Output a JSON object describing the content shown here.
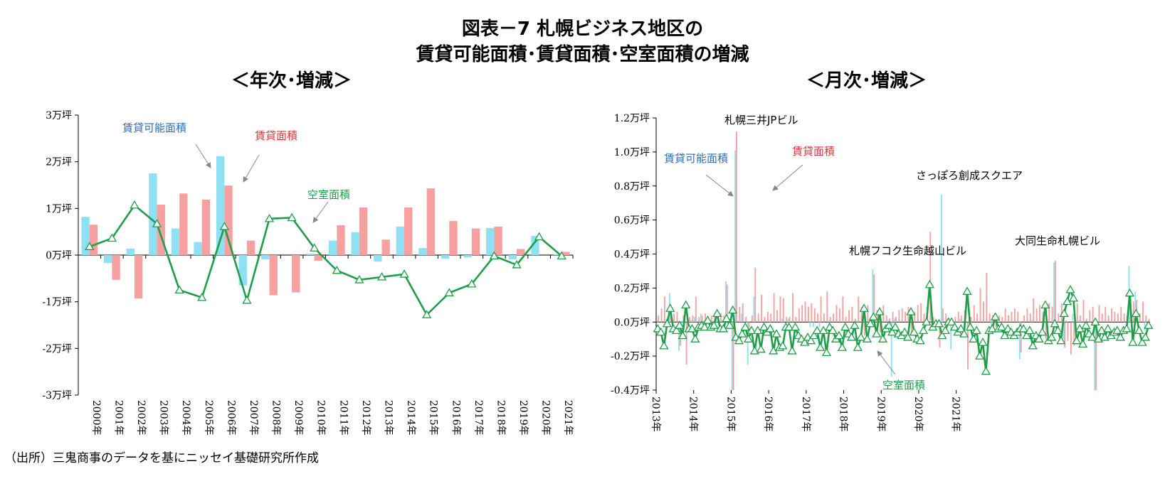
{
  "title_line1": "図表－7 札幌ビジネス地区の",
  "title_line2": "賃貸可能面積･賃貸面積･空室面積の増減",
  "source": "（出所）三鬼商事のデータを基にニッセイ基礎研究所作成",
  "colors": {
    "available": "#8ee0f2",
    "leased": "#f6a0a0",
    "vacant": "#1e9e48",
    "blue_text": "#2e6db4",
    "red_text": "#d9373f",
    "green_text": "#1e9e48"
  },
  "chart_data": [
    {
      "type": "bar",
      "subtitle": "＜年次･増減＞",
      "categories": [
        "2000年",
        "2001年",
        "2002年",
        "2003年",
        "2004年",
        "2005年",
        "2006年",
        "2007年",
        "2008年",
        "2009年",
        "2010年",
        "2011年",
        "2012年",
        "2013年",
        "2014年",
        "2015年",
        "2016年",
        "2017年",
        "2018年",
        "2019年",
        "2020年",
        "2021年"
      ],
      "ylim": [
        -3,
        3
      ],
      "yticks": [
        3,
        2,
        1,
        0,
        -1,
        -2,
        -3
      ],
      "ytick_labels": [
        "3万坪",
        "2万坪",
        "1万坪",
        "0万坪",
        "-1万坪",
        "-2万坪",
        "-3万坪"
      ],
      "series": [
        {
          "name": "賃貸可能面積",
          "kind": "bar",
          "values": [
            0.82,
            -0.17,
            0.14,
            1.75,
            0.57,
            0.28,
            2.12,
            -0.65,
            -0.09,
            0.0,
            0.03,
            0.31,
            0.49,
            -0.14,
            0.61,
            0.15,
            -0.08,
            -0.05,
            0.58,
            -0.09,
            0.41,
            0.02
          ]
        },
        {
          "name": "賃貸面積",
          "kind": "bar",
          "values": [
            0.65,
            -0.53,
            -0.93,
            1.08,
            1.32,
            1.19,
            1.49,
            0.31,
            -0.86,
            -0.8,
            -0.12,
            0.64,
            1.02,
            0.33,
            1.02,
            1.43,
            0.73,
            0.57,
            0.61,
            0.13,
            0.0,
            0.07
          ]
        },
        {
          "name": "空室面積",
          "kind": "line",
          "values": [
            0.18,
            0.36,
            1.07,
            0.67,
            -0.75,
            -0.91,
            0.61,
            -0.97,
            0.78,
            0.8,
            0.15,
            -0.33,
            -0.53,
            -0.47,
            -0.41,
            -1.28,
            -0.81,
            -0.62,
            -0.02,
            -0.21,
            0.39,
            -0.02
          ]
        }
      ],
      "annotations": [
        {
          "text": "賃貸可能面積",
          "target": "2006年 賃貸可能面積"
        },
        {
          "text": "賃貸面積",
          "target": "2006年 賃貸面積"
        },
        {
          "text": "空室面積",
          "target": "2010年 空室面積"
        }
      ]
    },
    {
      "type": "bar",
      "subtitle": "＜月次･増減＞",
      "x_start": "2013-01",
      "x_end": "2021-12",
      "xtick_labels": [
        "2013年",
        "2014年",
        "2015年",
        "2016年",
        "2017年",
        "2018年",
        "2019年",
        "2020年",
        "2021年"
      ],
      "ylim": [
        -0.4,
        1.2
      ],
      "yticks": [
        1.2,
        1.0,
        0.8,
        0.6,
        0.4,
        0.2,
        0.0,
        -0.2,
        -0.4
      ],
      "ytick_labels": [
        "1.2万坪",
        "1.0万坪",
        "0.8万坪",
        "0.6万坪",
        "0.4万坪",
        "0.2万坪",
        "0.0万坪",
        "-0.2万坪",
        "-0.4万坪"
      ],
      "series": [
        {
          "name": "賃貸可能面積",
          "kind": "bar",
          "values": [
            0.01,
            0.0,
            0.0,
            0.02,
            0.17,
            0.0,
            0.0,
            -0.17,
            -0.05,
            0.0,
            0.0,
            0.01,
            0.03,
            0.0,
            0.05,
            0.01,
            0.0,
            0.0,
            0.0,
            0.01,
            0.0,
            0.0,
            0.24,
            0.0,
            -0.4,
            1.01,
            0.0,
            0.05,
            0.0,
            -0.25,
            0.0,
            0.15,
            0.0,
            0.0,
            0.0,
            0.0,
            0.01,
            0.0,
            0.0,
            0.0,
            0.02,
            0.0,
            0.02,
            0.0,
            0.0,
            0.0,
            0.0,
            0.0,
            0.0,
            -0.03,
            -0.03,
            0.0,
            -0.03,
            0.0,
            0.0,
            0.01,
            0.0,
            0.0,
            0.0,
            0.0,
            0.0,
            0.0,
            0.0,
            0.0,
            0.01,
            0.0,
            0.03,
            0.0,
            0.0,
            0.31,
            0.0,
            0.0,
            0.0,
            0.0,
            0.0,
            -0.32,
            0.02,
            0.0,
            0.0,
            0.0,
            0.0,
            0.0,
            0.0,
            0.0,
            0.0,
            0.0,
            0.0,
            0.0,
            0.01,
            0.0,
            0.0,
            0.75,
            0.0,
            0.02,
            -0.16,
            -0.05,
            0.0,
            0.02,
            0.0,
            0.0,
            0.0,
            0.0,
            0.0,
            0.0,
            0.0,
            0.0,
            0.0,
            -0.05,
            0.0,
            0.0,
            0.0,
            0.0,
            0.0,
            0.0,
            0.0,
            0.0,
            -0.22,
            0.0,
            0.0,
            0.0,
            0.01,
            0.0,
            0.0,
            0.0,
            0.0,
            0.0,
            0.0,
            0.35,
            0.0,
            0.0,
            -0.1,
            0.01,
            0.0,
            0.05,
            0.0,
            0.01,
            0.0,
            0.0,
            0.0,
            0.0,
            -0.4,
            0.0,
            0.0,
            0.0,
            0.0,
            0.0,
            0.0,
            0.0,
            0.0,
            0.0,
            0.0,
            0.33,
            0.0,
            0.18,
            0.0,
            0.0,
            -0.05,
            0.0
          ]
        },
        {
          "name": "賃貸面積",
          "kind": "bar",
          "values": [
            0.04,
            0.08,
            0.15,
            0.03,
            0.06,
            0.05,
            0.06,
            -0.14,
            0.04,
            -0.25,
            0.03,
            0.04,
            0.15,
            0.03,
            0.04,
            0.05,
            0.03,
            0.04,
            0.03,
            0.0,
            0.05,
            0.04,
            0.22,
            0.02,
            -0.4,
            1.12,
            0.09,
            0.11,
            0.03,
            -0.07,
            0.04,
            0.32,
            0.05,
            0.16,
            0.03,
            0.06,
            0.05,
            0.17,
            0.07,
            0.15,
            0.14,
            0.03,
            0.03,
            0.17,
            0.03,
            0.08,
            0.1,
            0.12,
            0.09,
            0.11,
            0.08,
            0.05,
            0.15,
            0.05,
            0.18,
            0.03,
            0.05,
            0.1,
            0.08,
            0.15,
            0.03,
            0.07,
            0.09,
            0.02,
            0.15,
            0.09,
            -0.08,
            0.1,
            0.01,
            0.28,
            0.07,
            -0.06,
            0.1,
            0.04,
            0.02,
            0.06,
            0.03,
            0.07,
            0.08,
            0.06,
            0.09,
            -0.06,
            0.06,
            0.1,
            0.11,
            0.05,
            0.0,
            0.53,
            0.03,
            0.01,
            -0.15,
            0.08,
            0.05,
            0.02,
            0.0,
            0.03,
            0.06,
            0.04,
            0.07,
            -0.28,
            0.03,
            0.1,
            0.05,
            0.2,
            0.12,
            0.29,
            0.05,
            0.04,
            -0.03,
            0.04,
            0.03,
            0.08,
            0.04,
            0.06,
            0.08,
            0.06,
            -0.18,
            0.04,
            0.08,
            0.05,
            0.14,
            0.08,
            0.1,
            0.06,
            -0.1,
            0.11,
            0.09,
            0.36,
            0.05,
            0.11,
            -0.15,
            -0.11,
            -0.19,
            -0.14,
            0.11,
            0.04,
            0.13,
            0.02,
            0.07,
            0.09,
            -0.4,
            0.1,
            0.05,
            0.09,
            0.04,
            0.08,
            0.06,
            0.05,
            0.09,
            0.05,
            0.04,
            0.16,
            0.12,
            0.13,
            0.05,
            0.12,
            0.04,
            0.02
          ]
        },
        {
          "name": "空室面積",
          "kind": "line",
          "values": [
            -0.04,
            -0.06,
            -0.14,
            -0.01,
            0.08,
            -0.04,
            -0.05,
            -0.02,
            -0.08,
            0.1,
            -0.04,
            -0.04,
            -0.1,
            -0.03,
            -0.02,
            -0.03,
            0.01,
            -0.03,
            -0.02,
            0.05,
            -0.04,
            -0.04,
            0.02,
            -0.02,
            0.07,
            -0.09,
            -0.11,
            -0.07,
            -0.03,
            -0.1,
            -0.05,
            -0.17,
            -0.05,
            -0.16,
            -0.03,
            -0.06,
            -0.04,
            -0.17,
            -0.07,
            -0.15,
            -0.14,
            -0.03,
            -0.03,
            -0.17,
            -0.03,
            -0.08,
            -0.1,
            -0.12,
            -0.09,
            -0.11,
            -0.08,
            -0.05,
            -0.15,
            -0.05,
            -0.18,
            -0.03,
            -0.05,
            -0.1,
            -0.08,
            -0.15,
            -0.03,
            -0.07,
            -0.09,
            -0.02,
            -0.15,
            -0.09,
            0.08,
            -0.1,
            -0.01,
            0.03,
            -0.07,
            0.06,
            -0.1,
            -0.04,
            -0.02,
            -0.06,
            -0.03,
            -0.07,
            -0.08,
            -0.06,
            -0.09,
            0.06,
            -0.06,
            -0.1,
            -0.11,
            -0.05,
            0.0,
            0.22,
            -0.03,
            -0.01,
            -0.01,
            -0.08,
            -0.05,
            0.0,
            0.0,
            -0.03,
            -0.06,
            -0.04,
            -0.07,
            0.18,
            -0.03,
            -0.1,
            -0.05,
            -0.2,
            -0.12,
            -0.29,
            -0.05,
            -0.04,
            0.03,
            -0.04,
            -0.03,
            -0.08,
            -0.04,
            -0.06,
            -0.08,
            -0.06,
            -0.04,
            -0.04,
            -0.08,
            -0.05,
            -0.14,
            -0.08,
            -0.1,
            -0.06,
            0.1,
            -0.11,
            -0.09,
            -0.01,
            -0.05,
            -0.11,
            0.05,
            0.12,
            0.19,
            0.14,
            -0.11,
            -0.04,
            -0.13,
            -0.02,
            -0.07,
            -0.09,
            0.0,
            -0.1,
            -0.05,
            -0.09,
            -0.04,
            -0.08,
            -0.06,
            -0.05,
            -0.09,
            -0.05,
            -0.04,
            0.17,
            -0.12,
            0.05,
            -0.05,
            -0.12,
            -0.09,
            -0.02
          ]
        }
      ],
      "annotations": [
        {
          "text": "札幌三井JPビル"
        },
        {
          "text": "さっぽろ創成スクエア"
        },
        {
          "text": "札幌フコク生命越山ビル"
        },
        {
          "text": "大同生命札幌ビル"
        },
        {
          "text": "賃貸可能面積"
        },
        {
          "text": "賃貸面積"
        },
        {
          "text": "空室面積"
        }
      ]
    }
  ]
}
